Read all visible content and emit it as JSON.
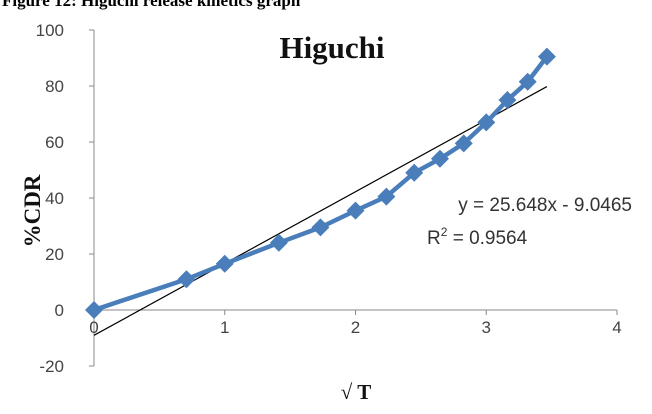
{
  "figure_caption": "Figure 12: Higuchi release kinetics graph",
  "chart_data": {
    "type": "scatter",
    "title": "Higuchi",
    "xlabel": "√ T",
    "ylabel": "%CDR",
    "xlim": [
      0,
      4
    ],
    "ylim": [
      -20,
      100
    ],
    "x_ticks": [
      "0",
      "1",
      "2",
      "3",
      "4"
    ],
    "y_ticks": [
      "100",
      "80",
      "60",
      "40",
      "20",
      "0",
      "-20"
    ],
    "grid": false,
    "series": [
      {
        "x": [
          0,
          0.707,
          1,
          1.414,
          1.732,
          2,
          2.236,
          2.449,
          2.646,
          2.828,
          3,
          3.162,
          3.317,
          3.464
        ],
        "y": [
          0,
          11,
          16.5,
          24,
          29.5,
          35.5,
          40.5,
          49,
          54,
          59.5,
          67,
          75,
          81.5,
          90.5
        ],
        "color": "#4a7ebb",
        "marker": "diamond"
      }
    ],
    "trendline": {
      "slope": 25.648,
      "intercept": -9.0465,
      "color": "#000000"
    },
    "equation_text": "y = 25.648x - 9.0465",
    "r2_label": "R",
    "r2_exp": "2",
    "r2_value": " = 0.9564"
  }
}
